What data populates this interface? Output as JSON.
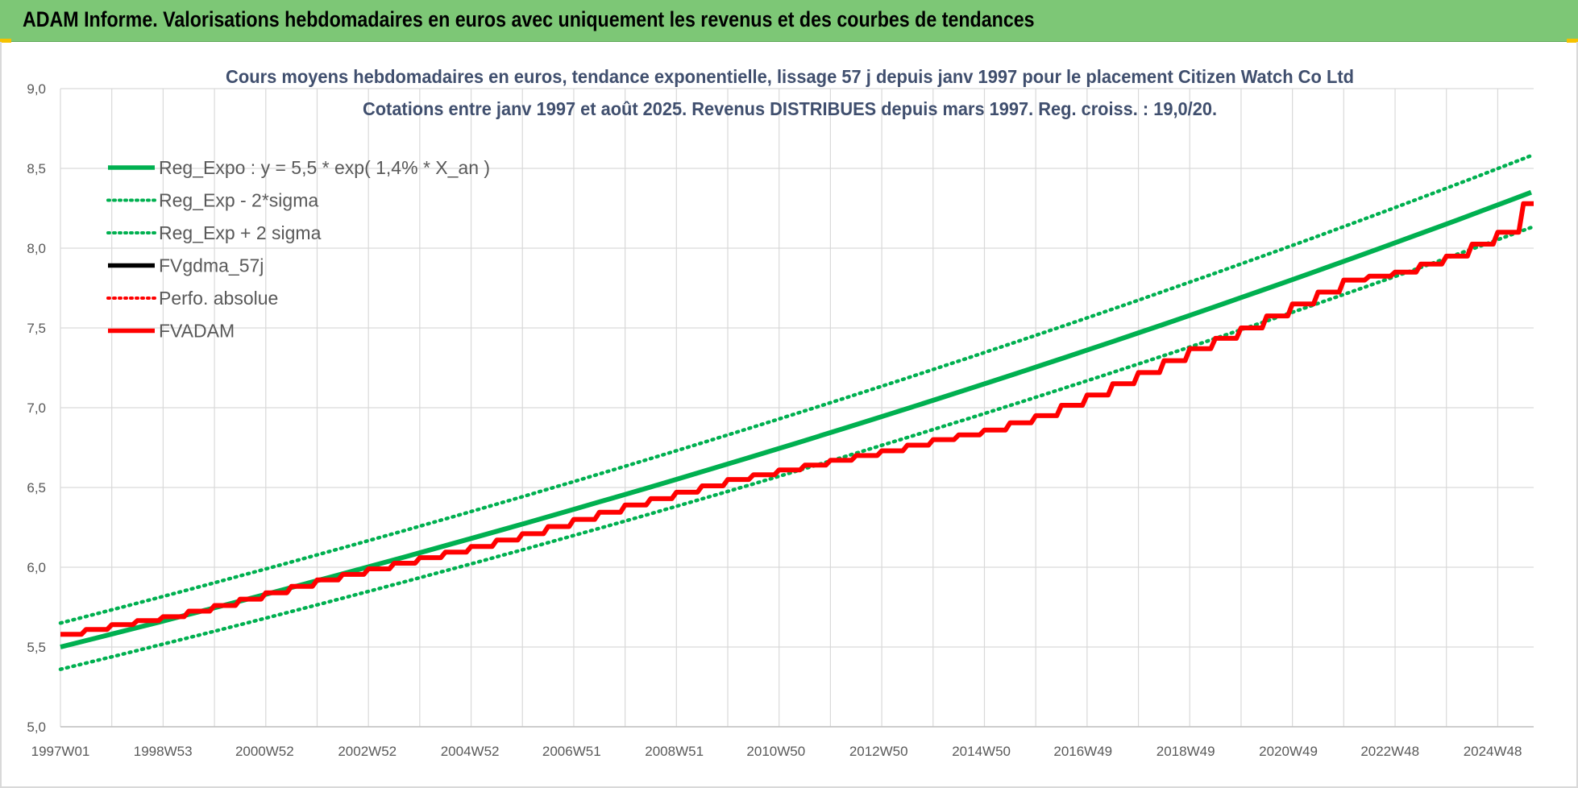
{
  "banner": {
    "title": "ADAM Informe. Valorisations hebdomadaires en euros avec uniquement les revenus et des courbes de tendances"
  },
  "colors": {
    "banner_bg": "#7dc776",
    "trend": "#00b050",
    "fvadam": "#ff0000",
    "gdma": "#000000",
    "title": "#404f6e",
    "accent_corners": "#f5c200"
  },
  "chart_data": {
    "type": "line",
    "title": "Cours moyens hebdomadaires en euros, tendance exponentielle, lissage 57 j depuis janv 1997 pour le placement Citizen Watch Co Ltd",
    "subtitle": "Cotations entre janv 1997 et août 2025. Revenus DISTRIBUES depuis mars 1997. Reg. croiss. : 19,0/20.",
    "xlabel": "",
    "ylabel": "",
    "ylim": [
      5.0,
      9.0
    ],
    "yticks": [
      "5,0",
      "5,5",
      "6,0",
      "6,5",
      "7,0",
      "7,5",
      "8,0",
      "8,5",
      "9,0"
    ],
    "xticks": [
      "1997W01",
      "1998W53",
      "2000W52",
      "2002W52",
      "2004W52",
      "2006W51",
      "2008W51",
      "2010W50",
      "2012W50",
      "2014W50",
      "2016W49",
      "2018W49",
      "2020W49",
      "2022W48",
      "2024W48"
    ],
    "x_range": [
      "1997W01",
      "2025W35"
    ],
    "grid": true,
    "legend_position": "top-left",
    "legend": [
      {
        "label": "Reg_Expo : y = 5,5 * exp( 1,4% *  X_an )",
        "style": "solid",
        "color": "#00b050"
      },
      {
        "label": "Reg_Exp - 2*sigma",
        "style": "dotted",
        "color": "#00b050"
      },
      {
        "label": "Reg_Exp + 2 sigma",
        "style": "dotted",
        "color": "#00b050"
      },
      {
        "label": "FVgdma_57j",
        "style": "solid",
        "color": "#000000"
      },
      {
        "label": "Perfo. absolue",
        "style": "dotted",
        "color": "#ff0000"
      },
      {
        "label": "FVADAM",
        "style": "solid",
        "color": "#ff0000"
      }
    ],
    "series": [
      {
        "name": "Reg_Expo : y = 5,5 * exp( 1,4% *  X_an )",
        "x": [
          "1997W01",
          "2025W35"
        ],
        "y": [
          5.5,
          8.35
        ]
      },
      {
        "name": "Reg_Exp - 2*sigma",
        "x": [
          "1997W01",
          "2025W35"
        ],
        "y": [
          5.36,
          8.13
        ]
      },
      {
        "name": "Reg_Exp + 2 sigma",
        "x": [
          "1997W01",
          "2025W35"
        ],
        "y": [
          5.65,
          8.58
        ]
      },
      {
        "name": "FVADAM",
        "x_year": [
          1997.0,
          1998.0,
          1999.0,
          2000.0,
          2001.0,
          2002.0,
          2003.0,
          2004.0,
          2005.0,
          2006.0,
          2007.0,
          2008.0,
          2009.0,
          2010.0,
          2011.0,
          2012.0,
          2013.0,
          2014.0,
          2015.0,
          2016.0,
          2017.0,
          2018.0,
          2019.0,
          2020.0,
          2021.0,
          2022.0,
          2023.0,
          2024.0,
          2025.0,
          2025.7
        ],
        "y": [
          5.58,
          5.64,
          5.69,
          5.76,
          5.84,
          5.92,
          5.99,
          6.06,
          6.13,
          6.21,
          6.3,
          6.39,
          6.47,
          6.55,
          6.61,
          6.67,
          6.73,
          6.8,
          6.86,
          6.95,
          7.08,
          7.22,
          7.37,
          7.5,
          7.65,
          7.8,
          7.85,
          7.95,
          8.1,
          8.35
        ]
      },
      {
        "name": "FVgdma_57j",
        "x_year": [
          1997.0,
          2025.7
        ],
        "y": [
          5.58,
          8.75
        ]
      },
      {
        "name": "Perfo. absolue",
        "x_year": [
          1997.0,
          2025.7
        ],
        "y": [
          5.58,
          8.75
        ]
      }
    ]
  }
}
